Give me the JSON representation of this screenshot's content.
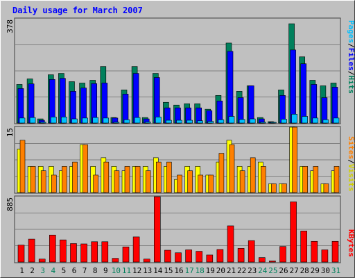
{
  "chart_data": [
    {
      "type": "bar",
      "title": "Daily usage for March 2007",
      "ymax_label": "378",
      "ylim": [
        0,
        378
      ],
      "categories": [
        "1",
        "2",
        "3",
        "4",
        "5",
        "6",
        "7",
        "8",
        "9",
        "10",
        "11",
        "12",
        "13",
        "14",
        "15",
        "16",
        "17",
        "18",
        "19",
        "20",
        "21",
        "22",
        "23",
        "24",
        "25",
        "26",
        "27",
        "28",
        "29",
        "30",
        "31"
      ],
      "weekend_days": [
        "3",
        "4",
        "10",
        "11",
        "17",
        "18",
        "24",
        "25",
        "31"
      ],
      "series": [
        {
          "name": "Hits",
          "color": "#00805c",
          "values": [
            140,
            160,
            15,
            175,
            180,
            150,
            145,
            155,
            205,
            20,
            120,
            205,
            20,
            180,
            75,
            65,
            70,
            70,
            50,
            100,
            290,
            115,
            135,
            20,
            5,
            120,
            360,
            240,
            155,
            135,
            145
          ]
        },
        {
          "name": "Files",
          "color": "#0000ff",
          "values": [
            125,
            142,
            10,
            158,
            162,
            115,
            127,
            143,
            145,
            18,
            105,
            180,
            15,
            165,
            55,
            55,
            55,
            55,
            45,
            80,
            260,
            92,
            135,
            15,
            3,
            100,
            265,
            215,
            140,
            92,
            130
          ]
        },
        {
          "name": "Pages",
          "color": "#00c0ff",
          "values": [
            18,
            20,
            3,
            22,
            22,
            15,
            18,
            20,
            18,
            3,
            12,
            20,
            4,
            22,
            10,
            10,
            10,
            8,
            6,
            12,
            24,
            13,
            15,
            3,
            1,
            14,
            32,
            24,
            18,
            12,
            18
          ]
        }
      ],
      "ylabel": [
        "Pages",
        "/",
        "Files",
        "/",
        "Hits"
      ]
    },
    {
      "type": "bar",
      "ymax_label": "15",
      "ylim": [
        0,
        15
      ],
      "series": [
        {
          "name": "Visits",
          "color": "#ffff00",
          "values": [
            10,
            6,
            6,
            6,
            5,
            6,
            11,
            6,
            8,
            6,
            5,
            6,
            6,
            8,
            6,
            3,
            6,
            6,
            4,
            7,
            12,
            6,
            6,
            7,
            2,
            2,
            15,
            6,
            5,
            2,
            5
          ]
        },
        {
          "name": "Sites",
          "color": "#ff8000",
          "values": [
            12,
            6,
            5,
            4,
            6,
            7,
            11,
            4,
            7,
            5,
            6,
            6,
            5,
            7,
            7,
            4,
            5,
            4,
            4,
            9,
            11,
            5,
            8,
            6,
            2,
            2,
            15,
            6,
            6,
            2,
            6
          ]
        }
      ],
      "ylabel": [
        "Sites",
        "/",
        "Visits"
      ]
    },
    {
      "type": "bar",
      "ymax_label": "885",
      "ylim": [
        0,
        885
      ],
      "series": [
        {
          "name": "KBytes",
          "color": "#ff0000",
          "values": [
            230,
            310,
            40,
            365,
            300,
            250,
            245,
            275,
            275,
            50,
            205,
            340,
            40,
            885,
            160,
            125,
            165,
            145,
            95,
            170,
            490,
            185,
            290,
            60,
            15,
            210,
            815,
            420,
            280,
            165,
            280
          ]
        }
      ],
      "ylabel": [
        "KBytes"
      ]
    }
  ],
  "colors": {
    "background": "#c0c0c0",
    "title": "#0000ff",
    "weekday_label": "#000000",
    "weekend_label": "#00805c",
    "grid": "#808080"
  }
}
